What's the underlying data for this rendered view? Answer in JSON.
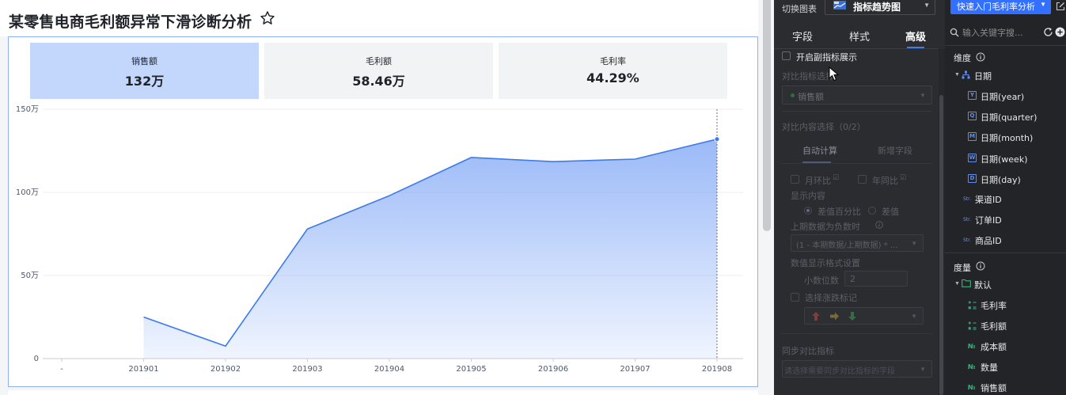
{
  "page": {
    "title": "某零售电商毛利额异常下滑诊断分析"
  },
  "kpis": [
    {
      "label": "销售额",
      "value": "132万",
      "active": true
    },
    {
      "label": "毛利额",
      "value": "58.46万",
      "active": false
    },
    {
      "label": "毛利率",
      "value": "44.29%",
      "active": false
    }
  ],
  "chart_data": {
    "type": "area",
    "categories": [
      "-",
      "201901",
      "201902",
      "201903",
      "201904",
      "201905",
      "201906",
      "201907",
      "201908"
    ],
    "y_tick_labels": [
      "0",
      "50万",
      "100万",
      "150万"
    ],
    "ylim": [
      0,
      150
    ],
    "y_unit": "万",
    "series": [
      {
        "values": [
          null,
          25,
          7.5,
          78,
          98,
          121,
          118.5,
          120,
          132
        ]
      }
    ],
    "highlight_category": "201908",
    "colors": {
      "line": "#3b7af0",
      "fill": "#7ea6f6"
    }
  },
  "mid_panel": {
    "switch_label": "切换图表",
    "chart_type": "指标趋势图",
    "tabs": [
      "字段",
      "样式",
      "高级"
    ],
    "active_tab": "高级",
    "enable_sub_indicator": "开启副指标展示",
    "compare_indicator_label": "对比指标选择",
    "compare_indicator_value": "销售额",
    "compare_content_label": "对比内容选择（0/2）",
    "subtabs": [
      "自动计算",
      "新增字段"
    ],
    "mom_label": "月环比",
    "yoy_label": "年同比",
    "display_content_label": "显示内容",
    "radio_diff_pct": "差值百分比",
    "radio_diff": "差值",
    "negative_prev_label": "上期数据为负数时",
    "negative_prev_value": "(1 - 本期数据/上期数据) * ...",
    "value_format_label": "数值显示格式设置",
    "decimal_label": "小数位数",
    "decimal_value": "2",
    "trend_mark_label": "选择涨跌标记",
    "sync_compare_label": "同步对比指标",
    "sync_compare_placeholder": "请选择需要同步对比指标的字段"
  },
  "right_panel": {
    "quick_button": "快速入门毛利率分析",
    "search_placeholder": "输入关键字搜...",
    "dimension_title": "维度",
    "dimension_group": "日期",
    "date_fields": [
      {
        "tag": "Y",
        "label": "日期(year)"
      },
      {
        "tag": "Q",
        "label": "日期(quarter)"
      },
      {
        "tag": "M",
        "label": "日期(month)"
      },
      {
        "tag": "W",
        "label": "日期(week)"
      },
      {
        "tag": "D",
        "label": "日期(day)"
      }
    ],
    "str_fields": [
      "渠道ID",
      "订单ID",
      "商品ID"
    ],
    "str_tag": "Str.",
    "measure_title": "度量",
    "measure_group": "默认",
    "calc_fields": [
      "毛利率",
      "毛利额"
    ],
    "num_fields": [
      "成本额",
      "数量",
      "销售额"
    ],
    "num_tag": "№"
  }
}
